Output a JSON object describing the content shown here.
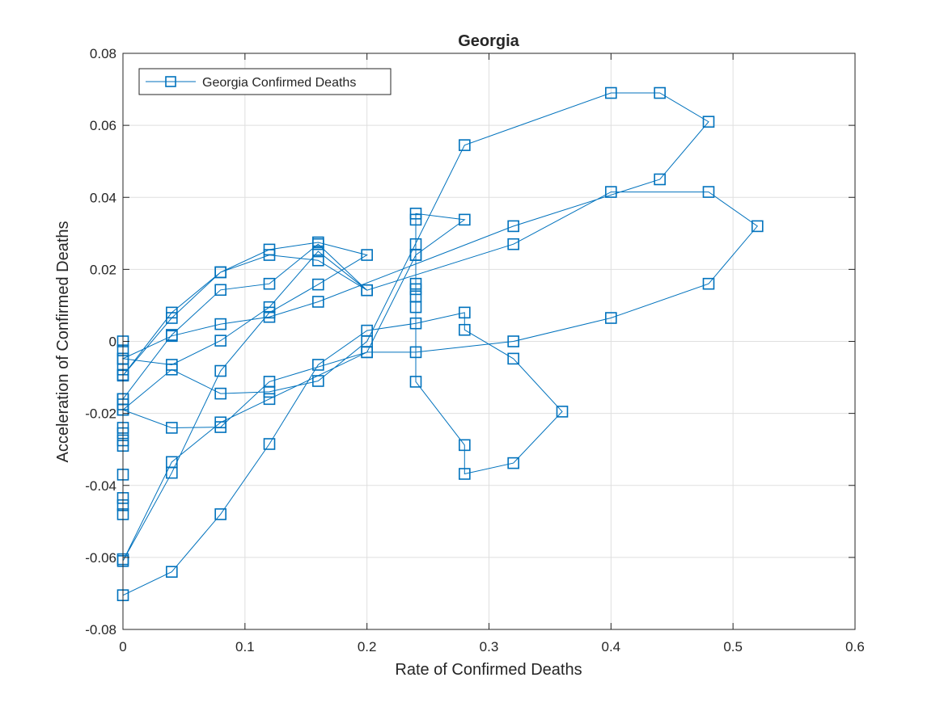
{
  "chart_data": {
    "type": "line",
    "title": "Georgia",
    "xlabel": "Rate of Confirmed Deaths",
    "ylabel": "Acceleration of Confirmed Deaths",
    "xlim": [
      0,
      0.6
    ],
    "ylim": [
      -0.08,
      0.08
    ],
    "xticks": [
      0,
      0.1,
      0.2,
      0.3,
      0.4,
      0.5,
      0.6
    ],
    "xtick_labels": [
      "0",
      "0.1",
      "0.2",
      "0.3",
      "0.4",
      "0.5",
      "0.6"
    ],
    "yticks": [
      -0.08,
      -0.06,
      -0.04,
      -0.02,
      0,
      0.02,
      0.04,
      0.06,
      0.08
    ],
    "ytick_labels": [
      "-0.08",
      "-0.06",
      "-0.04",
      "-0.02",
      "0",
      "0.02",
      "0.04",
      "0.06",
      "0.08"
    ],
    "grid": true,
    "legend_position": "top-left",
    "marker": "square",
    "series_color": "#0072BD",
    "series": [
      {
        "name": "Georgia Confirmed Deaths",
        "points": [
          [
            0,
            0
          ],
          [
            0,
            -0.0025
          ],
          [
            0,
            -0.0048
          ],
          [
            0,
            -0.0078
          ],
          [
            0,
            -0.0093
          ],
          [
            0,
            -0.016
          ],
          [
            0,
            -0.0175
          ],
          [
            0,
            -0.019
          ],
          [
            0,
            -0.024
          ],
          [
            0,
            -0.0255
          ],
          [
            0,
            -0.0275
          ],
          [
            0,
            -0.029
          ],
          [
            0,
            -0.037
          ],
          [
            0,
            -0.0435
          ],
          [
            0,
            -0.0455
          ],
          [
            0,
            -0.048
          ],
          [
            0,
            -0.0605
          ],
          [
            0,
            -0.0705
          ],
          [
            0.04,
            -0.064
          ],
          [
            0.08,
            -0.048
          ],
          [
            0.12,
            -0.0285
          ],
          [
            0.16,
            -0.0065
          ],
          [
            0.2,
            0.003
          ],
          [
            0.24,
            0.005
          ],
          [
            0.28,
            0.008
          ],
          [
            0.28,
            0.0032
          ],
          [
            0.32,
            -0.0048
          ],
          [
            0.36,
            -0.0195
          ],
          [
            0.32,
            -0.0338
          ],
          [
            0.28,
            -0.0368
          ],
          [
            0.28,
            -0.0288
          ],
          [
            0.24,
            -0.0112
          ],
          [
            0.24,
            0.0095
          ],
          [
            0.24,
            0.0125
          ],
          [
            0.24,
            0.0145
          ],
          [
            0.24,
            0.016
          ],
          [
            0.24,
            0.024
          ],
          [
            0.24,
            0.027
          ],
          [
            0.24,
            0.0338
          ],
          [
            0.24,
            0.0355
          ],
          [
            0.28,
            0.0338
          ],
          [
            0.24,
            0.024
          ],
          [
            0.2,
            -0.003
          ],
          [
            0.12,
            -0.016
          ],
          [
            0.08,
            -0.0225
          ],
          [
            0.04,
            -0.0335
          ],
          [
            0,
            -0.061
          ],
          [
            0.04,
            -0.0365
          ],
          [
            0.08,
            -0.0082
          ],
          [
            0.12,
            0.008
          ],
          [
            0.16,
            0.0158
          ],
          [
            0.2,
            0.024
          ],
          [
            0.16,
            0.0275
          ],
          [
            0.12,
            0.0255
          ],
          [
            0.08,
            0.0192
          ],
          [
            0.04,
            0.0065
          ],
          [
            0,
            -0.0095
          ],
          [
            0.04,
            0.008
          ],
          [
            0.08,
            0.0192
          ],
          [
            0.12,
            0.024
          ],
          [
            0.16,
            0.0225
          ],
          [
            0.2,
            0.0142
          ],
          [
            0.32,
            0.027
          ],
          [
            0.4,
            0.0415
          ],
          [
            0.48,
            0.0415
          ],
          [
            0.52,
            0.032
          ],
          [
            0.48,
            0.016
          ],
          [
            0.4,
            0.0065
          ],
          [
            0.32,
            0
          ],
          [
            0.24,
            -0.003
          ],
          [
            0.2,
            -0.003
          ],
          [
            0.12,
            -0.0112
          ],
          [
            0.08,
            -0.0238
          ],
          [
            0.04,
            -0.024
          ],
          [
            0,
            -0.019
          ],
          [
            0.04,
            -0.0078
          ],
          [
            0.08,
            -0.0145
          ],
          [
            0.12,
            -0.014
          ],
          [
            0.16,
            -0.011
          ],
          [
            0.2,
            0
          ],
          [
            0.28,
            0.0545
          ],
          [
            0.4,
            0.069
          ],
          [
            0.44,
            0.069
          ],
          [
            0.48,
            0.061
          ],
          [
            0.44,
            0.045
          ],
          [
            0.32,
            0.032
          ],
          [
            0.16,
            0.011
          ],
          [
            0.12,
            0.0068
          ],
          [
            0.08,
            0.0048
          ],
          [
            0.04,
            0.0015
          ],
          [
            0,
            -0.0048
          ],
          [
            0.04,
            -0.0065
          ],
          [
            0.08,
            0.0002
          ],
          [
            0.12,
            0.0095
          ],
          [
            0.16,
            0.025
          ],
          [
            0.2,
            0.0142
          ],
          [
            0.16,
            0.027
          ],
          [
            0.12,
            0.016
          ],
          [
            0.08,
            0.0143
          ],
          [
            0.04,
            0.0018
          ],
          [
            0,
            -0.016
          ]
        ]
      }
    ]
  }
}
